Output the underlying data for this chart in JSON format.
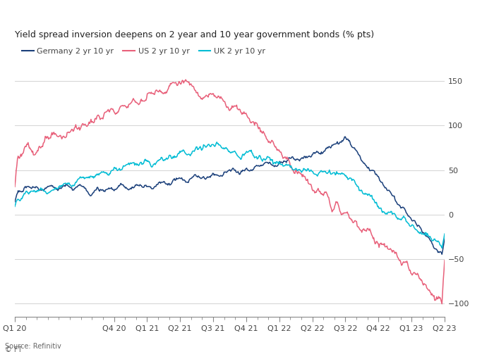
{
  "title": "Yield spread inversion deepens on 2 year and 10 year government bonds (% pts)",
  "source": "Source: Refinitiv",
  "legend": [
    "Germany 2 yr 10 yr",
    "US 2 yr 10 yr",
    "UK 2 yr 10 yr"
  ],
  "colors": {
    "germany": "#1a3f7a",
    "us": "#e8607a",
    "uk": "#00bcd4"
  },
  "x_tick_labels": [
    "Q1 20",
    "Q4 20",
    "Q1 21",
    "Q2 21",
    "Q3 21",
    "Q4 21",
    "Q1 22",
    "Q2 22",
    "Q3 22",
    "Q4 22",
    "Q1 23",
    "Q2 23"
  ],
  "ylim": [
    -115,
    170
  ],
  "yticks": [
    -100,
    -50,
    0,
    50,
    100,
    150
  ],
  "background_color": "#ffffff",
  "grid_color": "#cccccc",
  "title_fontsize": 9,
  "legend_fontsize": 8,
  "tick_fontsize": 8,
  "line_width": 1.1
}
